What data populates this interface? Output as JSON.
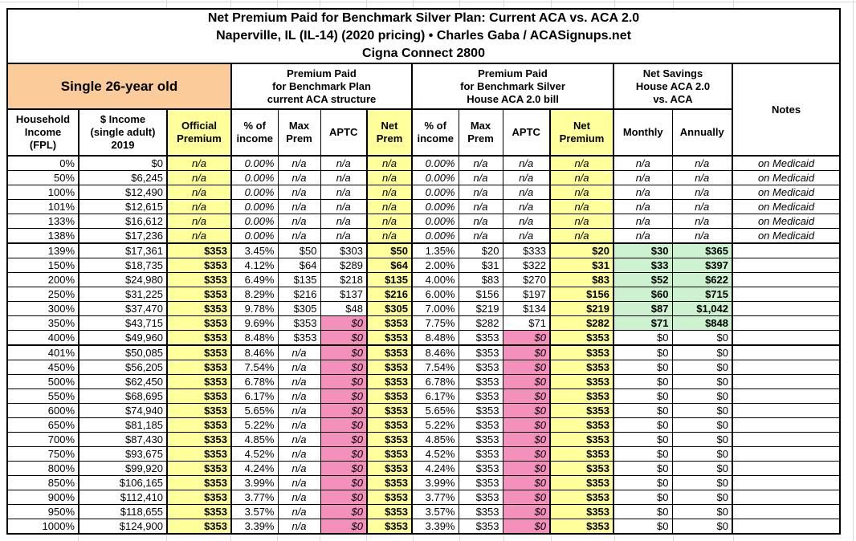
{
  "palette": {
    "yellow": "#FFFF9C",
    "pink": "#F490BC",
    "green": "#CCF2D0",
    "orange": "#FBCB99",
    "border": "#000000",
    "gridline": "#DADADA"
  },
  "title": {
    "line1": "Net Premium Paid for Benchmark Silver Plan: Current ACA vs. ACA 2.0",
    "line2": "Naperville, IL (IL-14) (2020 pricing) • Charles Gaba / ACASignups.net",
    "line3": "Cigna Connect 2800"
  },
  "groups": {
    "demographic": "Single 26-year old",
    "current_aca": "Premium Paid\nfor Benchmark Plan\ncurrent ACA structure",
    "aca2": "Premium Paid\nfor Benchmark Silver\nHouse ACA 2.0 bill",
    "savings": "Net Savings\nHouse ACA 2.0\nvs. ACA",
    "notes": "Notes"
  },
  "table": {
    "columns": [
      "Household\nIncome\n(FPL)",
      "$ Income\n(single adult)\n2019",
      "Official\nPremium",
      "% of\nincome",
      "Max\nPrem",
      "APTC",
      "Net\nPrem",
      "% of\nincome",
      "Max\nPrem",
      "APTC",
      "Net\nPremium",
      "Monthly",
      "Annually"
    ],
    "col_keys": [
      "fpl",
      "income",
      "official-premium",
      "pct-income-aca",
      "max-prem-aca",
      "aptc-aca",
      "net-prem-aca",
      "pct-income-aca2",
      "max-prem-aca2",
      "aptc-aca2",
      "net-premium-aca2",
      "savings-monthly",
      "savings-annually",
      "notes"
    ],
    "rows": [
      {
        "type": "medicaid",
        "cells": [
          "0%",
          "$0",
          "n/a",
          "0.00%",
          "n/a",
          "n/a",
          "n/a",
          "0.00%",
          "n/a",
          "n/a",
          "n/a",
          "n/a",
          "n/a",
          "on Medicaid"
        ]
      },
      {
        "type": "medicaid",
        "cells": [
          "50%",
          "$6,245",
          "n/a",
          "0.00%",
          "n/a",
          "n/a",
          "n/a",
          "0.00%",
          "n/a",
          "n/a",
          "n/a",
          "n/a",
          "n/a",
          "on Medicaid"
        ]
      },
      {
        "type": "medicaid",
        "cells": [
          "100%",
          "$12,490",
          "n/a",
          "0.00%",
          "n/a",
          "n/a",
          "n/a",
          "0.00%",
          "n/a",
          "n/a",
          "n/a",
          "n/a",
          "n/a",
          "on Medicaid"
        ]
      },
      {
        "type": "medicaid",
        "cells": [
          "101%",
          "$12,615",
          "n/a",
          "0.00%",
          "n/a",
          "n/a",
          "n/a",
          "0.00%",
          "n/a",
          "n/a",
          "n/a",
          "n/a",
          "n/a",
          "on Medicaid"
        ]
      },
      {
        "type": "medicaid",
        "cells": [
          "133%",
          "$16,612",
          "n/a",
          "0.00%",
          "n/a",
          "n/a",
          "n/a",
          "0.00%",
          "n/a",
          "n/a",
          "n/a",
          "n/a",
          "n/a",
          "on Medicaid"
        ]
      },
      {
        "type": "medicaid",
        "cells": [
          "138%",
          "$17,236",
          "n/a",
          "0.00%",
          "n/a",
          "n/a",
          "n/a",
          "0.00%",
          "n/a",
          "n/a",
          "n/a",
          "n/a",
          "n/a",
          "on Medicaid"
        ]
      },
      {
        "type": "mid",
        "cells": [
          "139%",
          "$17,361",
          "$353",
          "3.45%",
          "$50",
          "$303",
          "$50",
          "1.35%",
          "$20",
          "$333",
          "$20",
          "$30",
          "$365",
          ""
        ]
      },
      {
        "type": "mid",
        "cells": [
          "150%",
          "$18,735",
          "$353",
          "4.12%",
          "$64",
          "$289",
          "$64",
          "2.00%",
          "$31",
          "$322",
          "$31",
          "$33",
          "$397",
          ""
        ]
      },
      {
        "type": "mid",
        "cells": [
          "200%",
          "$24,980",
          "$353",
          "6.49%",
          "$135",
          "$218",
          "$135",
          "4.00%",
          "$83",
          "$270",
          "$83",
          "$52",
          "$622",
          ""
        ]
      },
      {
        "type": "mid",
        "cells": [
          "250%",
          "$31,225",
          "$353",
          "8.29%",
          "$216",
          "$137",
          "$216",
          "6.00%",
          "$156",
          "$197",
          "$156",
          "$60",
          "$715",
          ""
        ]
      },
      {
        "type": "mid",
        "cells": [
          "300%",
          "$37,470",
          "$353",
          "9.78%",
          "$305",
          "$48",
          "$305",
          "7.00%",
          "$219",
          "$134",
          "$219",
          "$87",
          "$1,042",
          ""
        ]
      },
      {
        "type": "mid",
        "cells": [
          "350%",
          "$43,715",
          "$353",
          "9.69%",
          "$353",
          "$0",
          "$353",
          "7.75%",
          "$282",
          "$71",
          "$282",
          "$71",
          "$848",
          ""
        ]
      },
      {
        "type": "mid",
        "cells": [
          "400%",
          "$49,960",
          "$353",
          "8.48%",
          "$353",
          "$0",
          "$353",
          "8.48%",
          "$353",
          "$0",
          "$353",
          "$0",
          "$0",
          ""
        ]
      },
      {
        "type": "over",
        "cells": [
          "401%",
          "$50,085",
          "$353",
          "8.46%",
          "n/a",
          "$0",
          "$353",
          "8.46%",
          "$353",
          "$0",
          "$353",
          "$0",
          "$0",
          ""
        ]
      },
      {
        "type": "over",
        "cells": [
          "450%",
          "$56,205",
          "$353",
          "7.54%",
          "n/a",
          "$0",
          "$353",
          "7.54%",
          "$353",
          "$0",
          "$353",
          "$0",
          "$0",
          ""
        ]
      },
      {
        "type": "over",
        "cells": [
          "500%",
          "$62,450",
          "$353",
          "6.78%",
          "n/a",
          "$0",
          "$353",
          "6.78%",
          "$353",
          "$0",
          "$353",
          "$0",
          "$0",
          ""
        ]
      },
      {
        "type": "over",
        "cells": [
          "550%",
          "$68,695",
          "$353",
          "6.17%",
          "n/a",
          "$0",
          "$353",
          "6.17%",
          "$353",
          "$0",
          "$353",
          "$0",
          "$0",
          ""
        ]
      },
      {
        "type": "over",
        "cells": [
          "600%",
          "$74,940",
          "$353",
          "5.65%",
          "n/a",
          "$0",
          "$353",
          "5.65%",
          "$353",
          "$0",
          "$353",
          "$0",
          "$0",
          ""
        ]
      },
      {
        "type": "over",
        "cells": [
          "650%",
          "$81,185",
          "$353",
          "5.22%",
          "n/a",
          "$0",
          "$353",
          "5.22%",
          "$353",
          "$0",
          "$353",
          "$0",
          "$0",
          ""
        ]
      },
      {
        "type": "over",
        "cells": [
          "700%",
          "$87,430",
          "$353",
          "4.85%",
          "n/a",
          "$0",
          "$353",
          "4.85%",
          "$353",
          "$0",
          "$353",
          "$0",
          "$0",
          ""
        ]
      },
      {
        "type": "over",
        "cells": [
          "750%",
          "$93,675",
          "$353",
          "4.52%",
          "n/a",
          "$0",
          "$353",
          "4.52%",
          "$353",
          "$0",
          "$353",
          "$0",
          "$0",
          ""
        ]
      },
      {
        "type": "over",
        "cells": [
          "800%",
          "$99,920",
          "$353",
          "4.24%",
          "n/a",
          "$0",
          "$353",
          "4.24%",
          "$353",
          "$0",
          "$353",
          "$0",
          "$0",
          ""
        ]
      },
      {
        "type": "over",
        "cells": [
          "850%",
          "$106,165",
          "$353",
          "3.99%",
          "n/a",
          "$0",
          "$353",
          "3.99%",
          "$353",
          "$0",
          "$353",
          "$0",
          "$0",
          ""
        ]
      },
      {
        "type": "over",
        "cells": [
          "900%",
          "$112,410",
          "$353",
          "3.77%",
          "n/a",
          "$0",
          "$353",
          "3.77%",
          "$353",
          "$0",
          "$353",
          "$0",
          "$0",
          ""
        ]
      },
      {
        "type": "over",
        "cells": [
          "950%",
          "$118,655",
          "$353",
          "3.57%",
          "n/a",
          "$0",
          "$353",
          "3.57%",
          "$353",
          "$0",
          "$353",
          "$0",
          "$0",
          ""
        ]
      },
      {
        "type": "over",
        "cells": [
          "1000%",
          "$124,900",
          "$353",
          "3.39%",
          "n/a",
          "$0",
          "$353",
          "3.39%",
          "$353",
          "$0",
          "$353",
          "$0",
          "$0",
          ""
        ]
      }
    ]
  }
}
